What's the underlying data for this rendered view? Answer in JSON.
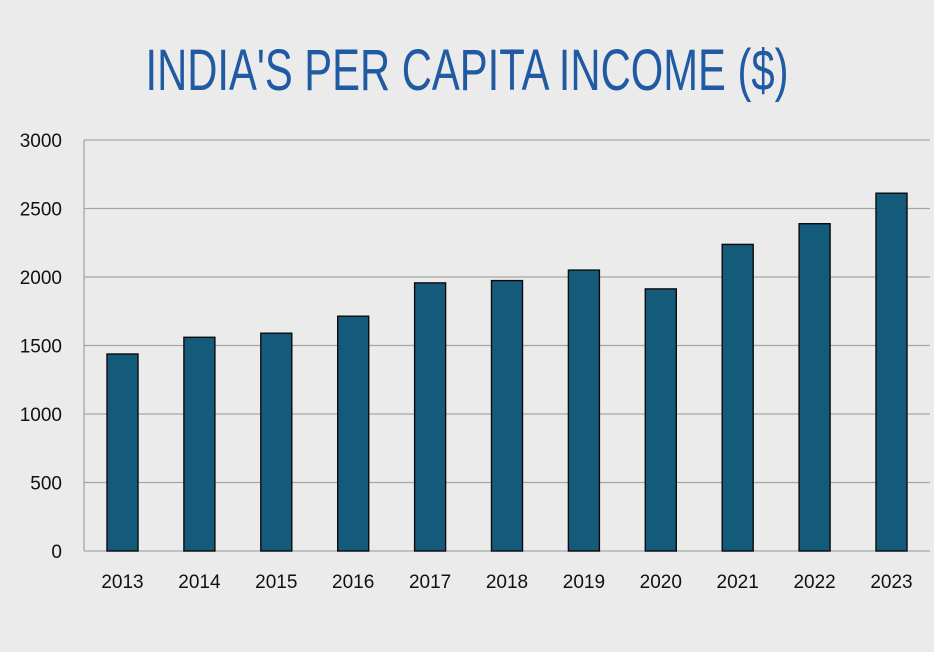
{
  "chart_data": {
    "type": "bar",
    "title": "INDIA'S PER CAPITA INCOME ($)",
    "categories": [
      "2013",
      "2014",
      "2015",
      "2016",
      "2017",
      "2018",
      "2019",
      "2020",
      "2021",
      "2022",
      "2023"
    ],
    "values": [
      1438,
      1560,
      1590,
      1714,
      1957,
      1974,
      2050,
      1913,
      2238,
      2389,
      2612
    ],
    "ylim": [
      0,
      3000
    ],
    "yticks": [
      0,
      500,
      1000,
      1500,
      2000,
      2500,
      3000
    ],
    "xlabel": "",
    "ylabel": "",
    "grid": true,
    "legend": "none",
    "colors": {
      "bar": "#145a7a",
      "bar_outline": "#0b0b0b",
      "grid": "#a6a6a6",
      "title": "#1f5aa3",
      "background": "#ebebeb"
    }
  }
}
